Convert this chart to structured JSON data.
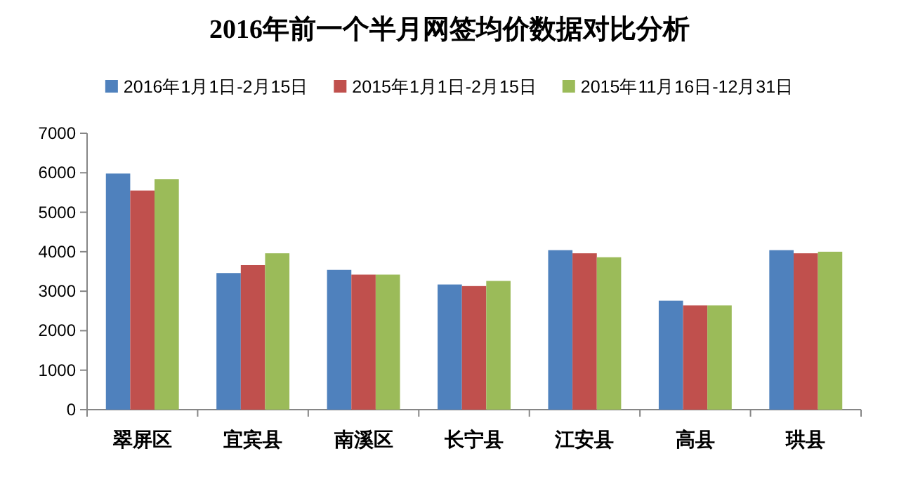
{
  "chart_data": {
    "type": "bar",
    "title": "2016年前一个半月网签均价数据对比分析",
    "categories": [
      "翠屏区",
      "宜宾县",
      "南溪区",
      "长宁县",
      "江安县",
      "高县",
      "珙县"
    ],
    "series": [
      {
        "name": "2016年1月1日-2月15日",
        "color": "#4f81bd",
        "values": [
          5980,
          3460,
          3540,
          3170,
          4040,
          2760,
          4040
        ]
      },
      {
        "name": "2015年1月1日-2月15日",
        "color": "#c0504d",
        "values": [
          5550,
          3660,
          3420,
          3130,
          3960,
          2640,
          3960
        ]
      },
      {
        "name": "2015年11月16日-12月31日",
        "color": "#9bbb59",
        "values": [
          5840,
          3960,
          3420,
          3260,
          3860,
          2640,
          4000
        ]
      }
    ],
    "ylim": [
      0,
      7000
    ],
    "yticks": [
      0,
      1000,
      2000,
      3000,
      4000,
      5000,
      6000,
      7000
    ],
    "grid": false,
    "legend": "top"
  }
}
